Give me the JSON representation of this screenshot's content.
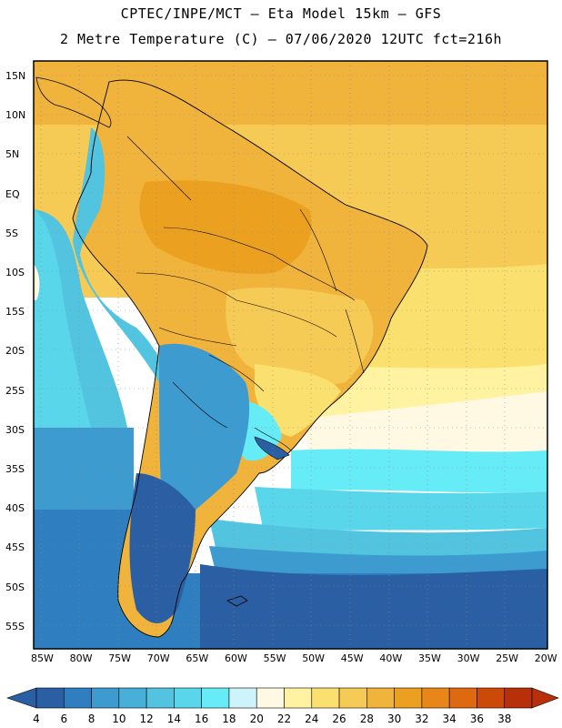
{
  "header": {
    "line1": "CPTEC/INPE/MCT –  Eta Model 15km – GFS",
    "line2": "2 Metre Temperature (C) – 07/06/2020 12UTC fct=216h"
  },
  "map": {
    "region": "South America",
    "lat_labels": [
      "15N",
      "10N",
      "5N",
      "EQ",
      "5S",
      "10S",
      "15S",
      "20S",
      "25S",
      "30S",
      "35S",
      "40S",
      "45S",
      "50S",
      "55S"
    ],
    "lon_labels": [
      "85W",
      "80W",
      "75W",
      "70W",
      "65W",
      "60W",
      "55W",
      "50W",
      "45W",
      "40W",
      "35W",
      "30W",
      "25W",
      "20W"
    ]
  },
  "colorbar": {
    "unit": "C",
    "labels": [
      "4",
      "6",
      "8",
      "10",
      "12",
      "14",
      "16",
      "18",
      "20",
      "22",
      "24",
      "26",
      "28",
      "30",
      "32",
      "34",
      "36",
      "38"
    ],
    "colors": [
      "#2b5fa3",
      "#2f7fc0",
      "#3d9bcf",
      "#48b0d8",
      "#52c4e0",
      "#5ad6ea",
      "#66ecf6",
      "#cdf4fb",
      "#fff8e2",
      "#fff3a2",
      "#fae06e",
      "#f5cb55",
      "#f0b43c",
      "#eca020",
      "#e8861a",
      "#dd6a10",
      "#cc4a08",
      "#b8300a"
    ]
  }
}
